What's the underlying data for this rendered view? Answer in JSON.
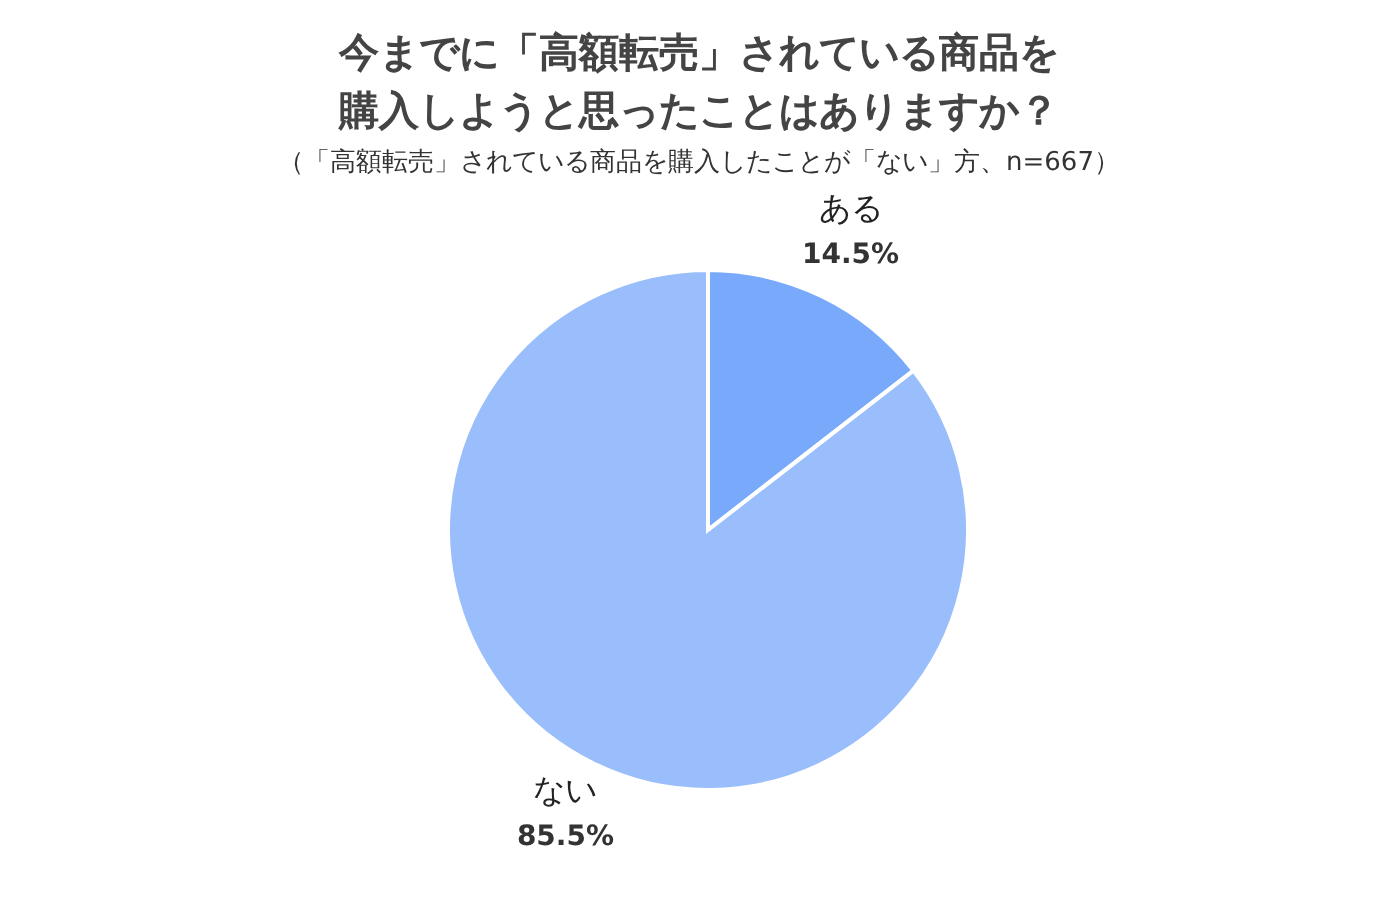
{
  "chart_data": {
    "type": "pie",
    "title": "今までに「高額転売」されている商品を購入しようと思ったことはありますか？",
    "subtitle": "（「高額転売」されている商品を購入したことが「ない」方、n=667）",
    "categories": [
      "ある",
      "ない"
    ],
    "values": [
      14.5,
      85.5
    ],
    "colors": [
      "#78a9fb",
      "#9abefc"
    ],
    "value_labels": [
      "14.5%",
      "85.5%"
    ]
  }
}
